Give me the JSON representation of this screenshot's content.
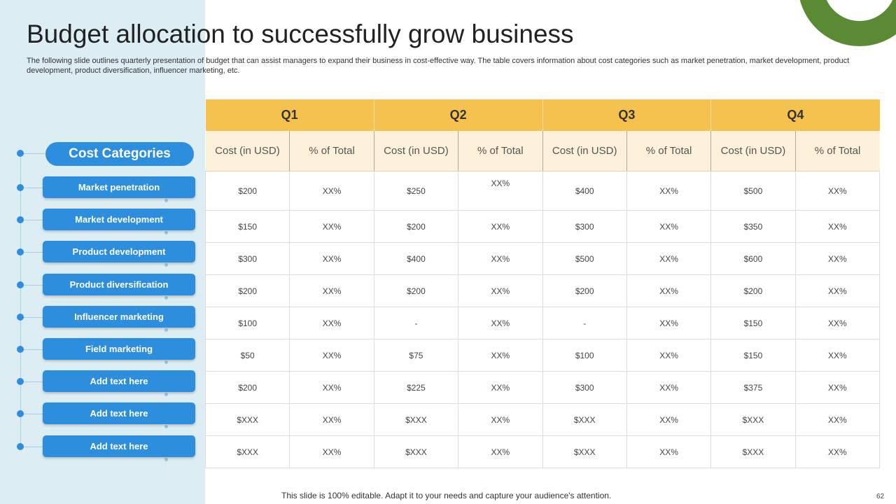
{
  "title": "Budget allocation to successfully grow business",
  "subtitle": "The following slide outlines quarterly presentation of budget that can assist managers to expand their business in cost-effective way. The table covers information about cost categories such as market penetration, market development, product development, product diversification, influencer marketing, etc.",
  "categories_header": "Cost Categories",
  "categories": [
    "Market penetration",
    "Market development",
    "Product development",
    "Product diversification",
    "Influencer marketing",
    "Field marketing",
    "Add text here",
    "Add text here",
    "Add text here"
  ],
  "quarters": [
    "Q1",
    "Q2",
    "Q3",
    "Q4"
  ],
  "subheaders": [
    "Cost (in USD)",
    "% of Total"
  ],
  "rows": [
    [
      "$200",
      "XX%",
      "$250",
      "XX%",
      "$400",
      "XX%",
      "$500",
      "XX%"
    ],
    [
      "$150",
      "XX%",
      "$200",
      "XX%",
      "$300",
      "XX%",
      "$350",
      "XX%"
    ],
    [
      "$300",
      "XX%",
      "$400",
      "XX%",
      "$500",
      "XX%",
      "$600",
      "XX%"
    ],
    [
      "$200",
      "XX%",
      "$200",
      "XX%",
      "$200",
      "XX%",
      "$200",
      "XX%"
    ],
    [
      "$100",
      "XX%",
      "-",
      "XX%",
      "-",
      "XX%",
      "$150",
      "XX%"
    ],
    [
      "$50",
      "XX%",
      "$75",
      "XX%",
      "$100",
      "XX%",
      "$150",
      "XX%"
    ],
    [
      "$200",
      "XX%",
      "$225",
      "XX%",
      "$300",
      "XX%",
      "$375",
      "XX%"
    ],
    [
      "$XXX",
      "XX%",
      "$XXX",
      "XX%",
      "$XXX",
      "XX%",
      "$XXX",
      "XX%"
    ],
    [
      "$XXX",
      "XX%",
      "$XXX",
      "XX%",
      "$XXX",
      "XX%",
      "$XXX",
      "XX%"
    ]
  ],
  "footer": "This slide is 100% editable. Adapt it to your needs and capture your audience's attention.",
  "page_number": "62",
  "colors": {
    "accent_blue": "#2e8ede",
    "header_yellow": "#f5c250",
    "subheader_cream": "#fdf1d9",
    "side_panel": "#dcedf3",
    "ring_green": "#5a8a34"
  }
}
